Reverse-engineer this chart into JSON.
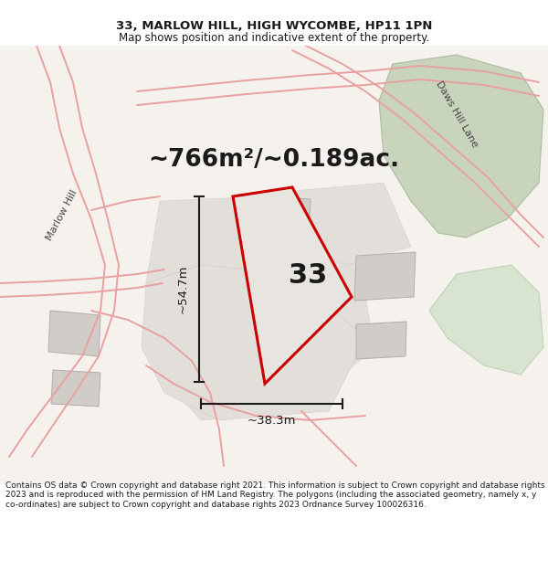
{
  "title": "33, MARLOW HILL, HIGH WYCOMBE, HP11 1PN",
  "subtitle": "Map shows position and indicative extent of the property.",
  "area_text": "~766m²/~0.189ac.",
  "dim_vertical": "~54.7m",
  "dim_horizontal": "~38.3m",
  "label_33": "33",
  "footer": "Contains OS data © Crown copyright and database right 2021. This information is subject to Crown copyright and database rights 2023 and is reproduced with the permission of HM Land Registry. The polygons (including the associated geometry, namely x, y co-ordinates) are subject to Crown copyright and database rights 2023 Ordnance Survey 100026316.",
  "road_label_left": "Marlow Hill",
  "road_label_right": "Daws Hill Lane",
  "title_fontsize": 9.5,
  "subtitle_fontsize": 8.5,
  "area_fontsize": 19,
  "label_fontsize": 22,
  "dim_fontsize": 9.5,
  "road_label_fontsize": 8,
  "footer_fontsize": 6.5,
  "map_bg": "#f5f2ee",
  "road_color": "#e8a0a0",
  "road_outline_color": "#d08080",
  "property_edge_color": "#cc0000",
  "property_fill": "#e8e4e0",
  "green_fill": "#c8d4bc",
  "green_edge": "#aabba0",
  "gray_fill": "#d0ccc8",
  "gray_edge": "#b0acaa",
  "parcel_fill": "#e2deda",
  "parcel_edge": "#c0bbb6",
  "dim_color": "#1a1a1a",
  "text_color": "#1a1a1a"
}
